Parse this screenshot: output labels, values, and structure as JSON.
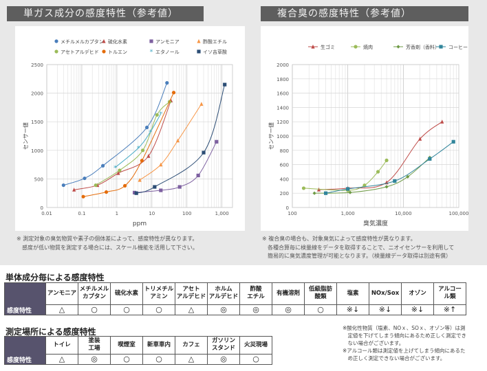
{
  "left_panel": {
    "title": "単ガス成分の感度特性（参考値）"
  },
  "right_panel": {
    "title": "複合臭の感度特性（参考値）"
  },
  "chart_data": [
    {
      "type": "scatter",
      "ylabel": "センサー値",
      "xlabel": "ppm",
      "xscale": "log",
      "xlim": [
        0.01,
        2000
      ],
      "ylim": [
        0,
        2500
      ],
      "xticks": [
        "0.01",
        "0.1",
        "1",
        "10",
        "100",
        "1,000"
      ],
      "yticks": [
        "0",
        "500",
        "1000",
        "1500",
        "2000",
        "2500"
      ],
      "grid": true,
      "legend_position": "top",
      "series": [
        {
          "name": "メチルメルカプタン",
          "color": "#4a7ebb",
          "marker": "circle",
          "points": [
            [
              0.03,
              390
            ],
            [
              0.12,
              510
            ],
            [
              0.4,
              730
            ],
            [
              7.2,
              1400
            ],
            [
              27,
              2180
            ]
          ]
        },
        {
          "name": "硫化水素",
          "color": "#be4b48",
          "marker": "triangle",
          "points": [
            [
              0.06,
              310
            ],
            [
              0.28,
              390
            ],
            [
              1.1,
              600
            ],
            [
              8,
              900
            ],
            [
              35,
              1870
            ]
          ]
        },
        {
          "name": "アンモニア",
          "color": "#7d60a0",
          "marker": "square",
          "points": [
            [
              3.2,
              260
            ],
            [
              18,
              300
            ],
            [
              62,
              360
            ],
            [
              210,
              560
            ],
            [
              700,
              1150
            ]
          ]
        },
        {
          "name": "酢酸エチル",
          "color": "#f79646",
          "marker": "triangle",
          "points": [
            [
              4.5,
              480
            ],
            [
              18,
              750
            ],
            [
              55,
              1170
            ],
            [
              260,
              1810
            ]
          ]
        },
        {
          "name": "アセトアルデヒド",
          "color": "#9bbb59",
          "marker": "circle",
          "points": [
            [
              0.25,
              390
            ],
            [
              1.2,
              650
            ],
            [
              5.5,
              1000
            ],
            [
              14,
              1620
            ],
            [
              32,
              1850
            ]
          ]
        },
        {
          "name": "トルエン",
          "color": "#e46c0a",
          "marker": "circle",
          "points": [
            [
              0.11,
              190
            ],
            [
              0.5,
              270
            ],
            [
              1.7,
              380
            ],
            [
              5.2,
              820
            ],
            [
              42,
              2010
            ]
          ]
        },
        {
          "name": "エタノール",
          "color": "#4bacc6",
          "marker": "asterisk",
          "points": [
            [
              0.9,
              700
            ],
            [
              4.1,
              1040
            ],
            [
              9,
              1320
            ],
            [
              18,
              1640
            ]
          ]
        },
        {
          "name": "イソ吉草酸",
          "color": "#2c4d75",
          "marker": "square",
          "points": [
            [
              3.6,
              250
            ],
            [
              12,
              360
            ],
            [
              300,
              960
            ],
            [
              1200,
              2150
            ]
          ]
        }
      ]
    },
    {
      "type": "line",
      "ylabel": "センサー値",
      "xlabel": "臭気濃度",
      "xscale": "log",
      "xlim": [
        100,
        100000
      ],
      "ylim": [
        0,
        2000
      ],
      "xticks": [
        "100",
        "1,000",
        "10,000",
        "100,000"
      ],
      "yticks": [
        "0",
        "200",
        "400",
        "600",
        "800",
        "1000",
        "1200",
        "1400",
        "1600",
        "1800",
        "2000"
      ],
      "grid": true,
      "legend_position": "top",
      "series": [
        {
          "name": "生ゴミ",
          "color": "#be4b48",
          "marker": "triangle",
          "points": [
            [
              300,
              250
            ],
            [
              1000,
              270
            ],
            [
              5000,
              350
            ],
            [
              20000,
              960
            ],
            [
              50000,
              1200
            ]
          ]
        },
        {
          "name": "焼肉",
          "color": "#9bbb59",
          "marker": "circle",
          "points": [
            [
              160,
              270
            ],
            [
              1000,
              240
            ],
            [
              2000,
              310
            ],
            [
              3500,
              500
            ],
            [
              5000,
              660
            ]
          ]
        },
        {
          "name": "芳香剤（香料）",
          "color": "#6e9a45",
          "marker": "diamond",
          "points": [
            [
              250,
              200
            ],
            [
              1100,
              210
            ],
            [
              5000,
              290
            ],
            [
              12000,
              430
            ],
            [
              30000,
              700
            ]
          ]
        },
        {
          "name": "コーヒー",
          "color": "#31859b",
          "marker": "square",
          "points": [
            [
              400,
              200
            ],
            [
              1000,
              260
            ],
            [
              7000,
              370
            ],
            [
              30000,
              680
            ],
            [
              80000,
              920
            ]
          ]
        }
      ]
    }
  ],
  "notes_left": [
    "※ 測定対象の臭気物質や素子の個体差によって、感度特性が異なります。",
    "　感度が低い物質を測定する場合には、スケール機能を活用して下さい。"
  ],
  "notes_right": [
    "※ 複合臭の場合も、対象臭気によって感度特性が異なります。",
    "　各種合算毎に検量線をデータを取得することで、ニオイセンサーを利用して",
    "　簡易的に臭気濃度管理が可能となります。（検量線データ取得は別途有償）"
  ],
  "table1": {
    "title": "単体成分毎による感度特性",
    "row_label": "感度特性",
    "headers": [
      "アンモニア",
      "メチルメル\nカプタン",
      "硫化水素",
      "トリメチル\nアミン",
      "アセト\nアルデヒド",
      "ホルム\nアルデヒド",
      "酢酸\nエチル",
      "有機溶剤",
      "低級脂肪\n酸類",
      "塩素",
      "NOx/Sox",
      "オゾン",
      "アルコー\nル類"
    ],
    "values": [
      "△",
      "○",
      "○",
      "○",
      "△",
      "◎",
      "◎",
      "◎",
      "○",
      "※↓",
      "※↓",
      "※↓",
      "※↑"
    ]
  },
  "table2": {
    "title": "測定場所による感度特性",
    "row_label": "感度特性",
    "headers": [
      "トイレ",
      "塗装\n工場",
      "喫煙室",
      "新車車内",
      "カフェ",
      "ガソリン\nスタンド",
      "火災現場"
    ],
    "values": [
      "△",
      "◎",
      "○",
      "○",
      "△",
      "◎",
      "○"
    ]
  },
  "footnotes": [
    "※酸化性物質（塩素、NOｘ、SOｘ、オゾン等）は測",
    "　定値を下げてしまう傾向にあるため正しく測定でき",
    "　ない場合がございます。",
    "※アルコール類は測定値を上げてしまう傾向にあるた",
    "　め正しく測定できない場合がございます。"
  ]
}
